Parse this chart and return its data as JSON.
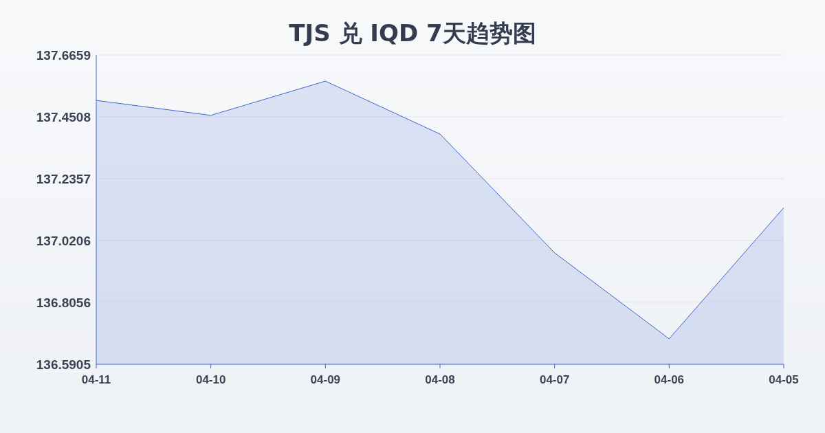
{
  "chart_data": {
    "type": "area",
    "title": "TJS 兑 IQD 7天趋势图",
    "categories": [
      "04-11",
      "04-10",
      "04-09",
      "04-08",
      "04-07",
      "04-06",
      "04-05"
    ],
    "series": [
      {
        "color": "#3a66d0",
        "values": [
          137.508,
          137.456,
          137.575,
          137.391,
          136.978,
          136.679,
          137.135
        ]
      }
    ],
    "ylim": [
      136.5905,
      137.6659
    ],
    "yticks": [
      136.5905,
      136.8056,
      137.0206,
      137.2357,
      137.4508,
      137.6659
    ],
    "grid": "y",
    "marker": "none",
    "line_style": "solid"
  }
}
